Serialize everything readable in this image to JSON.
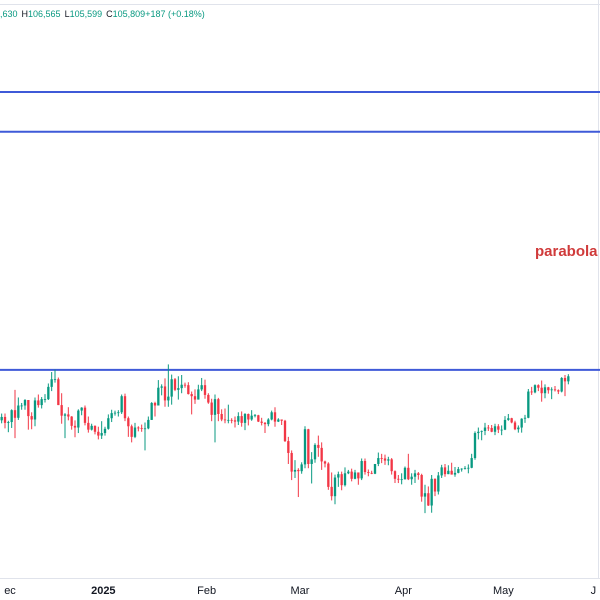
{
  "chart_data": {
    "type": "candlestick",
    "header": [
      ",630",
      "H",
      "106,565",
      "L",
      "105,599",
      "C",
      "105,809",
      "+187 (+0.18%)"
    ],
    "annotation": "parabola",
    "up_color": "#089981",
    "down_color": "#f23645",
    "hline_color": "#3f5ad8",
    "annotation_color": "#d03b3b",
    "hlines": [
      173.9,
      164.5,
      108.3
    ],
    "xlim": [
      0,
      180
    ],
    "ylim": [
      59.9,
      195.6
    ],
    "xticks": [
      {
        "value": 3,
        "label": "ec"
      },
      {
        "value": 31,
        "label": "2025"
      },
      {
        "value": 62,
        "label": "Feb"
      },
      {
        "value": 90,
        "label": "Mar"
      },
      {
        "value": 121,
        "label": "Apr"
      },
      {
        "value": 151,
        "label": "May"
      },
      {
        "value": 178,
        "label": "J"
      }
    ],
    "ohlc": [
      [
        96.4,
        98.0,
        95.7,
        97.2
      ],
      [
        97.2,
        98.0,
        94.5,
        95.8
      ],
      [
        95.8,
        96.3,
        93.6,
        96.0
      ],
      [
        96.0,
        99.0,
        94.6,
        98.8
      ],
      [
        98.8,
        103.6,
        92.2,
        97.0
      ],
      [
        97.0,
        101.8,
        96.5,
        99.9
      ],
      [
        99.9,
        100.5,
        98.9,
        99.9
      ],
      [
        99.9,
        101.4,
        98.9,
        101.2
      ],
      [
        101.2,
        101.2,
        94.2,
        97.4
      ],
      [
        97.4,
        98.3,
        94.3,
        96.6
      ],
      [
        96.6,
        101.8,
        95.0,
        101.1
      ],
      [
        101.1,
        102.5,
        99.4,
        100.0
      ],
      [
        100.0,
        101.9,
        99.2,
        101.4
      ],
      [
        101.4,
        102.6,
        100.6,
        101.4
      ],
      [
        101.4,
        105.1,
        101.2,
        104.3
      ],
      [
        104.3,
        107.8,
        103.3,
        106.1
      ],
      [
        106.1,
        108.4,
        105.3,
        106.1
      ],
      [
        106.1,
        106.5,
        100.0,
        100.0
      ],
      [
        100.0,
        102.8,
        95.6,
        97.5
      ],
      [
        97.5,
        98.1,
        92.2,
        97.8
      ],
      [
        97.8,
        99.5,
        96.4,
        97.3
      ],
      [
        97.3,
        97.4,
        94.2,
        95.1
      ],
      [
        95.1,
        96.4,
        92.4,
        94.7
      ],
      [
        94.7,
        99.0,
        93.4,
        98.7
      ],
      [
        98.7,
        99.5,
        97.6,
        99.4
      ],
      [
        99.4,
        99.9,
        95.2,
        95.8
      ],
      [
        95.8,
        97.3,
        93.5,
        94.2
      ],
      [
        94.2,
        95.6,
        94.0,
        95.1
      ],
      [
        95.1,
        95.2,
        93.1,
        93.7
      ],
      [
        93.7,
        94.9,
        91.9,
        92.8
      ],
      [
        92.8,
        96.2,
        92.0,
        93.4
      ],
      [
        93.4,
        94.9,
        92.8,
        94.4
      ],
      [
        94.4,
        97.8,
        94.2,
        96.9
      ],
      [
        96.9,
        98.9,
        96.0,
        98.1
      ],
      [
        98.1,
        98.7,
        97.5,
        98.2
      ],
      [
        98.2,
        98.8,
        97.3,
        98.3
      ],
      [
        98.3,
        102.5,
        97.9,
        102.1
      ],
      [
        102.1,
        102.7,
        96.2,
        96.9
      ],
      [
        96.9,
        97.3,
        92.5,
        95.0
      ],
      [
        95.0,
        95.4,
        91.2,
        92.5
      ],
      [
        92.5,
        95.8,
        92.2,
        94.7
      ],
      [
        94.7,
        95.0,
        93.8,
        94.6
      ],
      [
        94.6,
        95.4,
        93.7,
        94.5
      ],
      [
        94.5,
        95.9,
        89.3,
        94.5
      ],
      [
        94.5,
        97.3,
        94.3,
        96.5
      ],
      [
        96.5,
        100.7,
        96.5,
        100.5
      ],
      [
        100.5,
        100.8,
        97.3,
        99.9
      ],
      [
        99.9,
        105.9,
        99.9,
        104.1
      ],
      [
        104.1,
        104.9,
        102.3,
        104.4
      ],
      [
        104.4,
        106.3,
        99.6,
        101.1
      ],
      [
        101.1,
        109.6,
        99.6,
        102.0
      ],
      [
        102.0,
        107.2,
        100.1,
        106.1
      ],
      [
        106.1,
        106.4,
        103.3,
        103.6
      ],
      [
        103.6,
        106.8,
        101.3,
        104.0
      ],
      [
        104.0,
        107.1,
        102.8,
        104.8
      ],
      [
        104.8,
        105.3,
        104.1,
        104.7
      ],
      [
        104.7,
        105.4,
        102.5,
        102.6
      ],
      [
        102.6,
        103.2,
        97.8,
        102.1
      ],
      [
        102.1,
        103.7,
        100.3,
        101.3
      ],
      [
        101.3,
        104.8,
        101.3,
        103.7
      ],
      [
        103.7,
        106.4,
        103.3,
        104.7
      ],
      [
        104.7,
        106.0,
        101.5,
        102.4
      ],
      [
        102.4,
        102.8,
        100.3,
        100.6
      ],
      [
        100.6,
        101.5,
        96.2,
        97.7
      ],
      [
        97.7,
        102.5,
        91.2,
        101.4
      ],
      [
        101.4,
        101.7,
        96.2,
        97.9
      ],
      [
        97.9,
        99.0,
        96.2,
        96.6
      ],
      [
        96.6,
        99.2,
        95.7,
        96.5
      ],
      [
        96.5,
        100.1,
        95.7,
        96.5
      ],
      [
        96.5,
        96.9,
        95.7,
        96.4
      ],
      [
        96.4,
        97.3,
        94.7,
        96.1
      ],
      [
        96.1,
        98.3,
        95.3,
        97.4
      ],
      [
        97.4,
        98.5,
        94.9,
        95.8
      ],
      [
        95.8,
        98.1,
        94.1,
        97.9
      ],
      [
        97.9,
        98.0,
        95.2,
        96.6
      ],
      [
        96.6,
        98.8,
        96.3,
        97.5
      ],
      [
        97.5,
        97.9,
        97.1,
        97.6
      ],
      [
        97.6,
        97.7,
        96.0,
        96.1
      ],
      [
        96.1,
        97.0,
        95.2,
        95.8
      ],
      [
        95.8,
        96.0,
        93.4,
        95.5
      ],
      [
        95.5,
        96.9,
        95.0,
        96.6
      ],
      [
        96.6,
        98.7,
        96.4,
        98.3
      ],
      [
        98.3,
        99.5,
        94.9,
        96.1
      ],
      [
        96.1,
        96.9,
        96.0,
        96.6
      ],
      [
        96.6,
        96.6,
        95.3,
        96.3
      ],
      [
        96.3,
        96.5,
        91.3,
        91.5
      ],
      [
        91.5,
        92.5,
        86.1,
        88.7
      ],
      [
        88.7,
        89.3,
        82.3,
        84.3
      ],
      [
        84.3,
        87.0,
        82.8,
        84.7
      ],
      [
        84.7,
        85.1,
        78.3,
        84.4
      ],
      [
        84.4,
        86.5,
        83.8,
        86.0
      ],
      [
        86.0,
        95.0,
        85.1,
        94.3
      ],
      [
        94.3,
        94.4,
        85.1,
        86.1
      ],
      [
        86.1,
        88.9,
        81.5,
        87.2
      ],
      [
        87.2,
        91.0,
        86.4,
        90.6
      ],
      [
        90.6,
        92.8,
        87.8,
        89.9
      ],
      [
        89.9,
        91.2,
        84.7,
        86.7
      ],
      [
        86.7,
        86.9,
        85.3,
        86.2
      ],
      [
        86.2,
        86.5,
        80.0,
        80.7
      ],
      [
        80.7,
        84.1,
        77.5,
        78.5
      ],
      [
        78.5,
        83.6,
        76.6,
        82.9
      ],
      [
        82.9,
        84.3,
        80.7,
        83.7
      ],
      [
        83.7,
        84.3,
        79.9,
        81.1
      ],
      [
        81.1,
        85.3,
        80.8,
        83.9
      ],
      [
        83.9,
        84.7,
        83.7,
        84.3
      ],
      [
        84.3,
        85.0,
        82.0,
        82.6
      ],
      [
        82.6,
        84.7,
        82.5,
        84.1
      ],
      [
        84.1,
        84.1,
        81.2,
        82.7
      ],
      [
        82.7,
        87.4,
        82.3,
        86.8
      ],
      [
        86.8,
        87.4,
        83.6,
        84.2
      ],
      [
        84.2,
        84.8,
        83.2,
        84.0
      ],
      [
        84.0,
        84.5,
        83.7,
        83.8
      ],
      [
        83.8,
        86.1,
        83.7,
        86.1
      ],
      [
        86.1,
        88.8,
        85.6,
        87.5
      ],
      [
        87.5,
        88.5,
        86.3,
        87.4
      ],
      [
        87.4,
        88.3,
        85.9,
        86.9
      ],
      [
        86.9,
        87.8,
        85.8,
        87.2
      ],
      [
        87.2,
        87.5,
        83.6,
        84.4
      ],
      [
        84.4,
        84.6,
        81.6,
        82.6
      ],
      [
        82.6,
        83.5,
        81.6,
        82.4
      ],
      [
        82.4,
        83.9,
        81.3,
        82.5
      ],
      [
        82.5,
        85.5,
        82.4,
        85.2
      ],
      [
        85.2,
        88.5,
        82.3,
        82.5
      ],
      [
        82.5,
        83.9,
        81.2,
        83.1
      ],
      [
        83.1,
        84.7,
        81.6,
        83.9
      ],
      [
        83.9,
        84.2,
        82.4,
        83.5
      ],
      [
        83.5,
        83.8,
        77.2,
        78.4
      ],
      [
        78.4,
        81.2,
        74.5,
        79.2
      ],
      [
        79.2,
        80.8,
        76.2,
        76.3
      ],
      [
        76.3,
        83.5,
        74.6,
        82.6
      ],
      [
        82.6,
        82.7,
        78.5,
        79.6
      ],
      [
        79.6,
        84.2,
        78.9,
        83.4
      ],
      [
        83.4,
        85.9,
        82.8,
        85.3
      ],
      [
        85.3,
        86.1,
        83.1,
        83.7
      ],
      [
        83.7,
        85.8,
        83.7,
        84.5
      ],
      [
        84.5,
        86.4,
        83.6,
        83.6
      ],
      [
        83.6,
        85.4,
        83.1,
        84.0
      ],
      [
        84.0,
        85.4,
        83.9,
        84.9
      ],
      [
        84.9,
        85.1,
        84.3,
        85.0
      ],
      [
        85.0,
        85.6,
        84.8,
        85.1
      ],
      [
        85.1,
        86.0,
        83.9,
        85.2
      ],
      [
        85.2,
        88.5,
        85.1,
        87.5
      ],
      [
        87.5,
        93.8,
        87.1,
        93.4
      ],
      [
        93.4,
        94.7,
        91.9,
        93.7
      ],
      [
        93.7,
        94.0,
        91.7,
        93.9
      ],
      [
        93.9,
        95.8,
        92.9,
        94.7
      ],
      [
        94.7,
        95.3,
        93.9,
        94.6
      ],
      [
        94.6,
        95.3,
        93.6,
        93.7
      ],
      [
        93.7,
        95.6,
        92.9,
        95.0
      ],
      [
        95.0,
        95.5,
        93.4,
        94.2
      ],
      [
        94.2,
        95.2,
        92.9,
        94.2
      ],
      [
        94.2,
        97.4,
        94.1,
        96.5
      ],
      [
        96.5,
        97.9,
        96.3,
        96.9
      ],
      [
        96.9,
        97.0,
        95.7,
        95.9
      ],
      [
        95.9,
        96.3,
        94.1,
        94.3
      ],
      [
        94.3,
        95.2,
        93.5,
        94.7
      ],
      [
        94.7,
        96.9,
        93.5,
        96.8
      ],
      [
        96.8,
        97.7,
        95.8,
        97.0
      ],
      [
        97.0,
        103.8,
        96.9,
        103.2
      ],
      [
        103.2,
        104.3,
        102.4,
        103.0
      ],
      [
        103.0,
        104.9,
        102.8,
        104.7
      ],
      [
        104.7,
        104.9,
        103.3,
        104.1
      ],
      [
        104.1,
        105.8,
        100.8,
        102.8
      ],
      [
        102.8,
        104.9,
        101.6,
        104.2
      ],
      [
        104.2,
        104.3,
        102.7,
        103.5
      ],
      [
        103.5,
        104.2,
        101.4,
        103.7
      ],
      [
        103.7,
        104.5,
        103.2,
        103.5
      ],
      [
        103.5,
        103.7,
        102.6,
        103.2
      ],
      [
        103.2,
        106.6,
        103.0,
        106.4
      ],
      [
        106.4,
        107.1,
        102.1,
        105.6
      ],
      [
        105.6,
        107.3,
        104.9,
        106.8
      ]
    ]
  }
}
